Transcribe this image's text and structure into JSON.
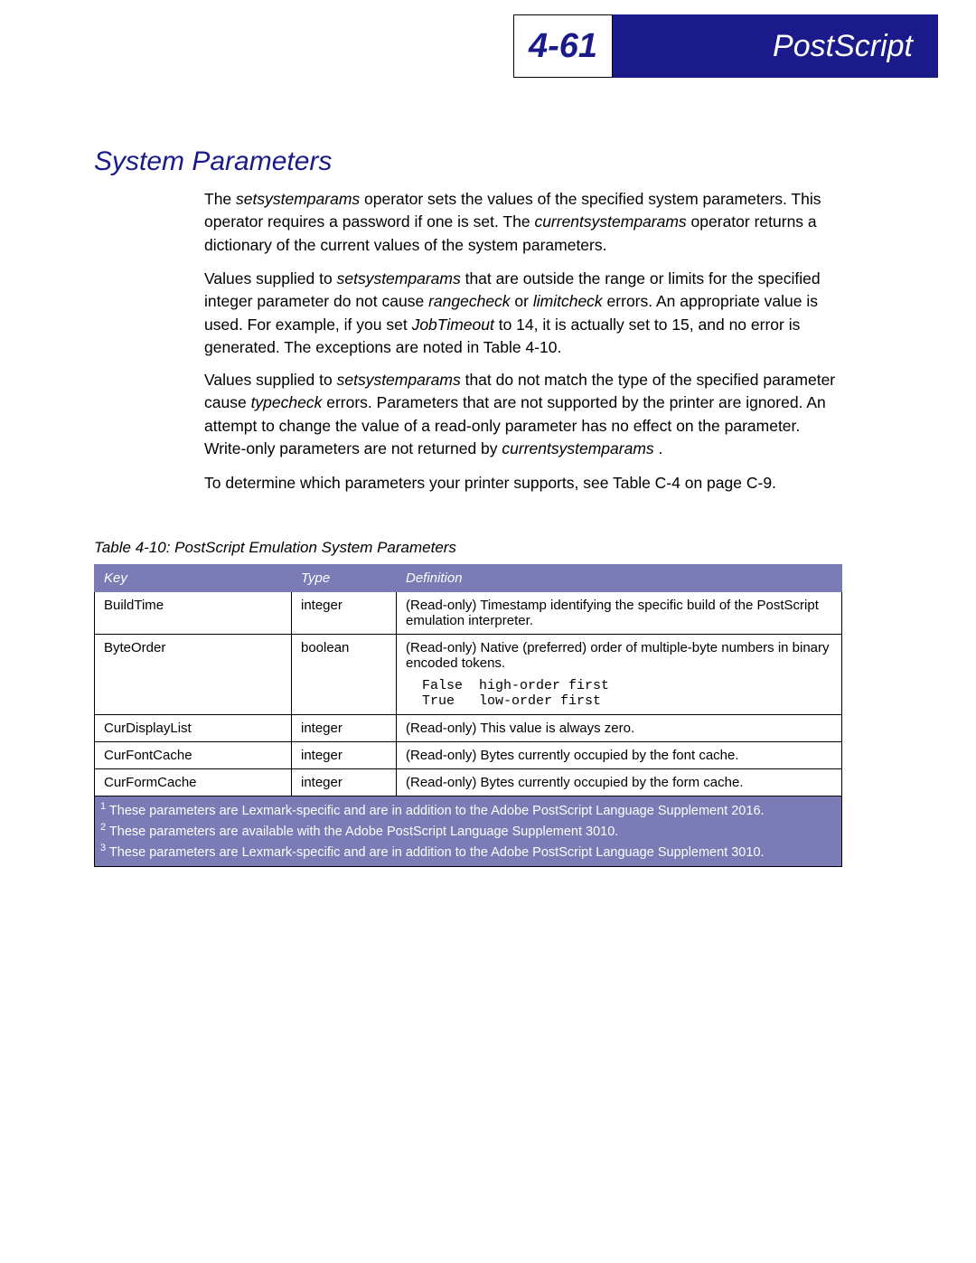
{
  "header": {
    "page_num": "4-61",
    "title": "PostScript"
  },
  "section": {
    "title": "System Parameters"
  },
  "paragraphs": {
    "p1_a": "The ",
    "p1_op1": "setsystemparams",
    "p1_b": " operator sets the values of the specified system parameters. This operator requires a password if one is set. The ",
    "p1_op2": "currentsystemparams",
    "p1_c": " operator returns a dictionary of the current values of the system parameters.",
    "p2_a": "Values supplied to ",
    "p2_op1": "setsystemparams",
    "p2_b": " that are outside the range or limits for the specified integer parameter do not cause ",
    "p2_op2": "rangecheck",
    "p2_c": " or ",
    "p2_op3": "limitcheck",
    "p2_d": " errors. An appropriate value is used. For example, if you set ",
    "p2_op4": "JobTimeout",
    "p2_e": " to 14, it is actually set to 15, and no error is generated. The exceptions are noted in Table 4-10.",
    "p3_a": "Values supplied to ",
    "p3_op1": "setsystemparams",
    "p3_b": " that do not match the type of the specified parameter cause ",
    "p3_op2": "typecheck",
    "p3_c": " errors. Parameters that are not supported by the printer are ignored. An attempt to change the value of a read-only parameter has no effect on the parameter. Write-only parameters are not returned by ",
    "p3_op3": "currentsystemparams",
    "p3_d": " .",
    "p4": "To determine which parameters your printer supports, see Table C-4 on page C-9."
  },
  "table": {
    "caption": "Table 4-10: PostScript Emulation System Parameters",
    "headers": {
      "key": "Key",
      "type": "Type",
      "def": "Definition"
    },
    "rows": [
      {
        "key": "BuildTime",
        "type": "integer",
        "def": "(Read-only) Timestamp identifying the specific build of the PostScript emulation interpreter."
      },
      {
        "key": "ByteOrder",
        "type": "boolean",
        "def": "(Read-only) Native (preferred) order of multiple-byte numbers in binary encoded tokens.",
        "mono": "  False  high-order first\n  True   low-order first"
      },
      {
        "key": "CurDisplayList",
        "type": "integer",
        "def": "(Read-only) This value is always zero."
      },
      {
        "key": "CurFontCache",
        "type": "integer",
        "def": "(Read-only) Bytes currently occupied by the font cache."
      },
      {
        "key": "CurFormCache",
        "type": "integer",
        "def": "(Read-only) Bytes currently occupied by the form cache."
      }
    ],
    "footnotes": {
      "f1": " These parameters are Lexmark-specific and are in addition to the Adobe PostScript Language Supplement 2016.",
      "f2": " These parameters are available with the Adobe PostScript Language Supplement 3010.",
      "f3": " These parameters are Lexmark-specific and are in addition to the Adobe PostScript Language Supplement 3010."
    }
  }
}
